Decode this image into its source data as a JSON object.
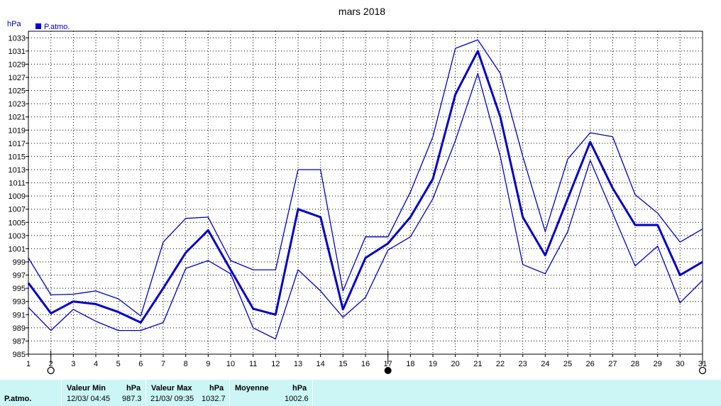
{
  "chart_data": {
    "type": "line",
    "title": "mars 2018",
    "unit": "hPa",
    "legend": "P.atmo.",
    "x": [
      1,
      2,
      3,
      4,
      5,
      6,
      7,
      8,
      9,
      10,
      11,
      12,
      13,
      14,
      15,
      16,
      17,
      18,
      19,
      20,
      21,
      22,
      23,
      24,
      25,
      26,
      27,
      28,
      29,
      30,
      31
    ],
    "ylim": [
      985,
      1034
    ],
    "y_ticks": [
      985,
      987,
      989,
      991,
      993,
      995,
      997,
      999,
      1001,
      1003,
      1005,
      1007,
      1009,
      1011,
      1013,
      1015,
      1017,
      1019,
      1021,
      1023,
      1025,
      1027,
      1029,
      1031,
      1033
    ],
    "grid": true,
    "series": [
      {
        "role": "max",
        "values": [
          999.6,
          994.0,
          994.1,
          994.6,
          993.4,
          990.8,
          1002.0,
          1005.6,
          1005.8,
          999.2,
          997.8,
          997.8,
          1013.0,
          1013.0,
          994.6,
          1002.8,
          1002.8,
          1009.6,
          1018.0,
          1031.4,
          1032.7,
          1027.6,
          1015.0,
          1003.6,
          1014.6,
          1018.6,
          1018.0,
          1009.2,
          1006.4,
          1002.0,
          1004.0
        ]
      },
      {
        "role": "mean",
        "values": [
          995.8,
          991.2,
          993.0,
          992.6,
          991.4,
          989.8,
          995.0,
          1000.4,
          1003.8,
          997.8,
          991.9,
          991.0,
          1007.0,
          1005.8,
          991.8,
          999.6,
          1001.8,
          1005.8,
          1011.6,
          1024.4,
          1031.0,
          1021.0,
          1005.8,
          1000.0,
          1008.6,
          1017.2,
          1010.2,
          1004.6,
          1004.6,
          997.0,
          999.0
        ]
      },
      {
        "role": "min",
        "values": [
          992.1,
          988.6,
          991.8,
          990.0,
          988.6,
          988.6,
          989.8,
          998.0,
          999.2,
          997.2,
          989.0,
          987.3,
          997.8,
          994.6,
          990.6,
          993.6,
          1000.8,
          1002.8,
          1008.6,
          1017.4,
          1027.6,
          1015.0,
          998.6,
          997.2,
          1003.6,
          1014.4,
          1006.4,
          998.4,
          1001.4,
          992.8,
          996.2
        ]
      }
    ],
    "markers": {
      "open_circle": [
        2,
        31
      ],
      "filled_circle": [
        17
      ]
    },
    "line_color": "#0000cc"
  },
  "stats": {
    "series_label": "P.atmo.",
    "min_header": "Valeur Min",
    "min_unit": "hPa",
    "min_time": "12/03/  04:45",
    "min_value": "987.3",
    "max_header": "Valeur Max",
    "max_unit": "hPa",
    "max_time": "21/03/  09:35",
    "max_value": "1032.7",
    "avg_header": "Moyenne",
    "avg_unit": "hPa",
    "avg_value": "1002.6"
  }
}
